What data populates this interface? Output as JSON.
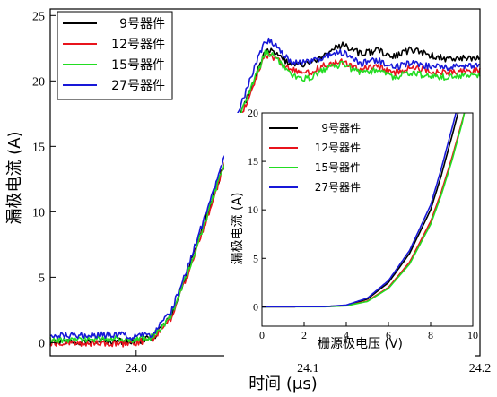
{
  "chart_data": [
    {
      "type": "line",
      "xlabel": "时间 (μs)",
      "ylabel": "漏极电流 (A)",
      "xlim": [
        23.95,
        24.2
      ],
      "ylim": [
        -1,
        25.5
      ],
      "xticks": [
        {
          "value": 24.0,
          "label": "24.0"
        },
        {
          "value": 24.1,
          "label": "24.1"
        },
        {
          "value": 24.2,
          "label": "24.2"
        }
      ],
      "yticks": [
        {
          "value": 0,
          "label": "0"
        },
        {
          "value": 5,
          "label": "5"
        },
        {
          "value": 10,
          "label": "10"
        },
        {
          "value": 15,
          "label": "15"
        },
        {
          "value": 20,
          "label": "20"
        },
        {
          "value": 25,
          "label": "25"
        }
      ],
      "legend_position": "top-left",
      "series": [
        {
          "name": "9号器件",
          "color": "#000000",
          "points": [
            [
              23.95,
              0.0
            ],
            [
              23.99,
              0.1
            ],
            [
              24.0,
              0.05
            ],
            [
              24.01,
              0.4
            ],
            [
              24.02,
              2.0
            ],
            [
              24.03,
              5.5
            ],
            [
              24.04,
              9.3
            ],
            [
              24.05,
              13.2
            ],
            [
              24.06,
              17.2
            ],
            [
              24.07,
              20.6
            ],
            [
              24.075,
              22.4
            ],
            [
              24.08,
              22.3
            ],
            [
              24.09,
              21.2
            ],
            [
              24.1,
              21.3
            ],
            [
              24.11,
              22.0
            ],
            [
              24.12,
              22.8
            ],
            [
              24.13,
              22.1
            ],
            [
              24.14,
              22.3
            ],
            [
              24.15,
              21.9
            ],
            [
              24.16,
              22.4
            ],
            [
              24.17,
              22.0
            ],
            [
              24.18,
              21.7
            ],
            [
              24.19,
              21.8
            ],
            [
              24.2,
              21.7
            ]
          ]
        },
        {
          "name": "12号器件",
          "color": "#e8141c",
          "points": [
            [
              23.95,
              0.0
            ],
            [
              23.99,
              -0.1
            ],
            [
              24.0,
              0.0
            ],
            [
              24.01,
              0.3
            ],
            [
              24.02,
              1.8
            ],
            [
              24.03,
              5.2
            ],
            [
              24.04,
              9.0
            ],
            [
              24.05,
              13.0
            ],
            [
              24.06,
              17.0
            ],
            [
              24.07,
              20.3
            ],
            [
              24.075,
              22.0
            ],
            [
              24.08,
              21.8
            ],
            [
              24.09,
              20.8
            ],
            [
              24.1,
              20.6
            ],
            [
              24.11,
              21.2
            ],
            [
              24.12,
              21.5
            ],
            [
              24.13,
              20.9
            ],
            [
              24.14,
              21.1
            ],
            [
              24.15,
              20.6
            ],
            [
              24.16,
              21.0
            ],
            [
              24.17,
              20.8
            ],
            [
              24.18,
              20.6
            ],
            [
              24.19,
              20.7
            ],
            [
              24.2,
              20.8
            ]
          ]
        },
        {
          "name": "15号器件",
          "color": "#22dd22",
          "points": [
            [
              23.95,
              0.2
            ],
            [
              23.99,
              0.3
            ],
            [
              24.0,
              0.2
            ],
            [
              24.01,
              0.5
            ],
            [
              24.02,
              2.0
            ],
            [
              24.03,
              5.4
            ],
            [
              24.04,
              9.2
            ],
            [
              24.05,
              13.2
            ],
            [
              24.06,
              17.2
            ],
            [
              24.07,
              20.5
            ],
            [
              24.075,
              22.1
            ],
            [
              24.08,
              21.9
            ],
            [
              24.09,
              20.4
            ],
            [
              24.1,
              20.2
            ],
            [
              24.11,
              20.9
            ],
            [
              24.12,
              21.3
            ],
            [
              24.13,
              20.6
            ],
            [
              24.14,
              20.8
            ],
            [
              24.15,
              20.3
            ],
            [
              24.16,
              20.6
            ],
            [
              24.17,
              20.4
            ],
            [
              24.18,
              20.3
            ],
            [
              24.19,
              20.4
            ],
            [
              24.2,
              20.5
            ]
          ]
        },
        {
          "name": "27号器件",
          "color": "#1818d8",
          "points": [
            [
              23.95,
              0.5
            ],
            [
              23.99,
              0.6
            ],
            [
              24.0,
              0.4
            ],
            [
              24.01,
              0.7
            ],
            [
              24.02,
              2.3
            ],
            [
              24.03,
              5.8
            ],
            [
              24.04,
              9.6
            ],
            [
              24.05,
              13.6
            ],
            [
              24.06,
              17.8
            ],
            [
              24.07,
              21.4
            ],
            [
              24.075,
              23.1
            ],
            [
              24.08,
              22.9
            ],
            [
              24.09,
              21.5
            ],
            [
              24.1,
              21.4
            ],
            [
              24.11,
              21.9
            ],
            [
              24.12,
              22.2
            ],
            [
              24.13,
              21.3
            ],
            [
              24.14,
              21.6
            ],
            [
              24.15,
              21.0
            ],
            [
              24.16,
              21.4
            ],
            [
              24.17,
              21.1
            ],
            [
              24.18,
              21.0
            ],
            [
              24.19,
              21.1
            ],
            [
              24.2,
              21.1
            ]
          ]
        }
      ]
    },
    {
      "type": "line",
      "xlabel": "栅源极电压 (V)",
      "ylabel": "漏极电流 (A)",
      "xlim": [
        0,
        10
      ],
      "ylim": [
        -2,
        20
      ],
      "xticks": [
        {
          "value": 0,
          "label": "0"
        },
        {
          "value": 2,
          "label": "2"
        },
        {
          "value": 4,
          "label": "4"
        },
        {
          "value": 6,
          "label": "6"
        },
        {
          "value": 8,
          "label": "8"
        },
        {
          "value": 10,
          "label": "10"
        }
      ],
      "yticks": [
        {
          "value": 0,
          "label": "0"
        },
        {
          "value": 5,
          "label": "5"
        },
        {
          "value": 10,
          "label": "10"
        },
        {
          "value": 15,
          "label": "15"
        },
        {
          "value": 20,
          "label": "20"
        }
      ],
      "legend_position": "top-left",
      "series": [
        {
          "name": "9号器件",
          "color": "#000000",
          "points": [
            [
              0,
              0
            ],
            [
              3,
              0.02
            ],
            [
              4,
              0.15
            ],
            [
              5,
              0.8
            ],
            [
              6,
              2.5
            ],
            [
              7,
              5.5
            ],
            [
              8,
              10.0
            ],
            [
              8.5,
              13.5
            ],
            [
              9,
              17.5
            ],
            [
              9.3,
              20.0
            ]
          ]
        },
        {
          "name": "12号器件",
          "color": "#e8141c",
          "points": [
            [
              0,
              0
            ],
            [
              3,
              0.02
            ],
            [
              4,
              0.12
            ],
            [
              5,
              0.6
            ],
            [
              6,
              2.0
            ],
            [
              7,
              4.6
            ],
            [
              8,
              8.8
            ],
            [
              8.5,
              11.8
            ],
            [
              9,
              15.3
            ],
            [
              9.5,
              19.2
            ],
            [
              9.6,
              20.0
            ]
          ]
        },
        {
          "name": "15号器件",
          "color": "#22dd22",
          "points": [
            [
              0,
              0
            ],
            [
              3,
              0.01
            ],
            [
              4,
              0.1
            ],
            [
              5,
              0.55
            ],
            [
              6,
              1.9
            ],
            [
              7,
              4.4
            ],
            [
              8,
              8.5
            ],
            [
              8.5,
              11.5
            ],
            [
              9,
              15.0
            ],
            [
              9.5,
              19.0
            ],
            [
              9.6,
              20.0
            ]
          ]
        },
        {
          "name": "27号器件",
          "color": "#1818d8",
          "points": [
            [
              0,
              0
            ],
            [
              3,
              0.02
            ],
            [
              4,
              0.18
            ],
            [
              5,
              0.9
            ],
            [
              6,
              2.7
            ],
            [
              7,
              5.8
            ],
            [
              8,
              10.5
            ],
            [
              8.5,
              14.2
            ],
            [
              9,
              18.3
            ],
            [
              9.2,
              20.0
            ]
          ]
        }
      ]
    }
  ]
}
